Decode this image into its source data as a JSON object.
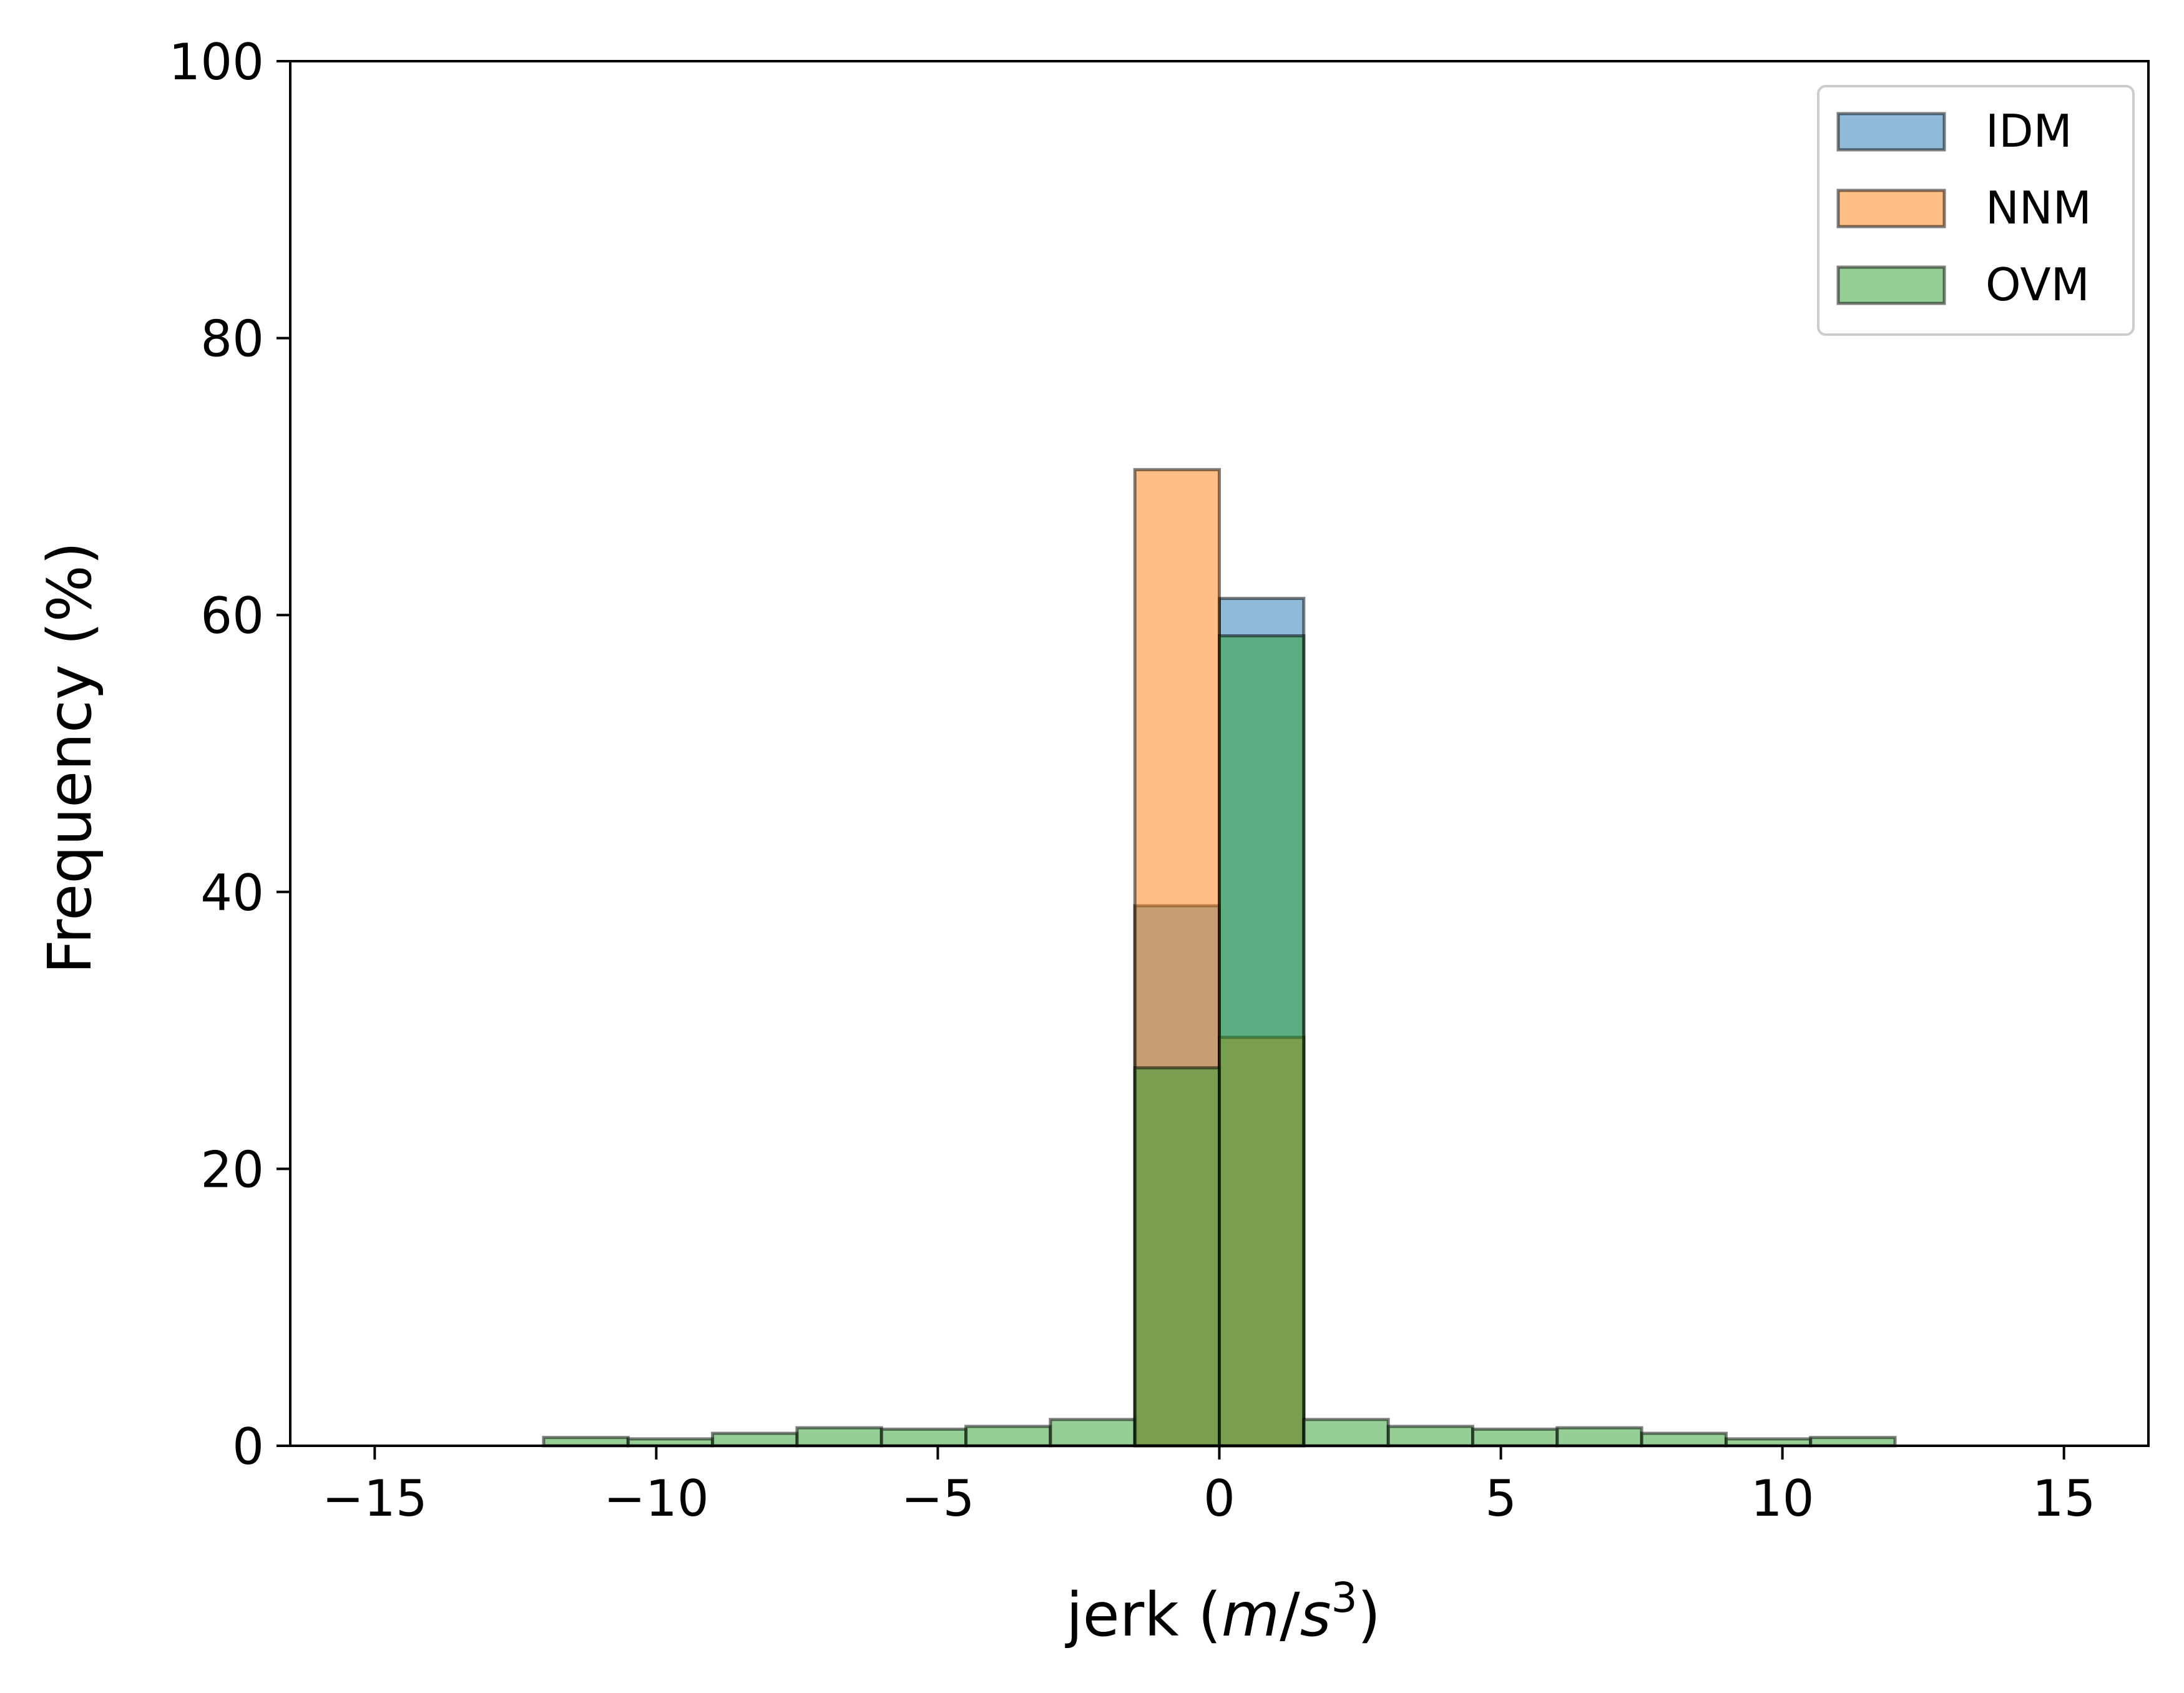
{
  "chart_data": {
    "type": "bar",
    "subtype": "overlaid-histogram",
    "xlabel_prefix": "jerk (",
    "xlabel_unit_m": "m",
    "xlabel_unit_slash": "/",
    "xlabel_unit_s": "s",
    "xlabel_unit_exp": "3",
    "xlabel_suffix": ")",
    "ylabel": "Frequency (%)",
    "xlim": [
      -16.5,
      16.5
    ],
    "ylim": [
      0,
      100
    ],
    "xticks": [
      -15,
      -10,
      -5,
      0,
      5,
      10,
      15
    ],
    "xtick_labels": [
      "−15",
      "−10",
      "−5",
      "0",
      "5",
      "10",
      "15"
    ],
    "yticks": [
      0,
      20,
      40,
      60,
      80,
      100
    ],
    "ytick_labels": [
      "0",
      "20",
      "40",
      "60",
      "80",
      "100"
    ],
    "bin_edges": [
      -15,
      -13.5,
      -12,
      -10.5,
      -9,
      -7.5,
      -6,
      -4.5,
      -3,
      -1.5,
      0,
      1.5,
      3,
      4.5,
      6,
      7.5,
      9,
      10.5,
      12,
      13.5,
      15
    ],
    "grid": false,
    "legend_position": "top-right",
    "series": [
      {
        "name": "IDM",
        "color": "#1f77b4",
        "values": [
          0,
          0,
          0,
          0,
          0,
          0,
          0,
          0,
          0,
          39.0,
          61.2,
          0,
          0,
          0,
          0,
          0,
          0,
          0,
          0,
          0
        ]
      },
      {
        "name": "NNM",
        "color": "#ff7f0e",
        "values": [
          0,
          0,
          0,
          0,
          0,
          0,
          0,
          0,
          0,
          70.5,
          29.5,
          0,
          0,
          0,
          0,
          0,
          0,
          0,
          0,
          0
        ]
      },
      {
        "name": "OVM",
        "color": "#2ca02c",
        "values": [
          0,
          0,
          0.6,
          0.5,
          0.9,
          1.3,
          1.2,
          1.4,
          1.9,
          27.3,
          58.5,
          1.9,
          1.4,
          1.2,
          1.3,
          0.9,
          0.5,
          0.6,
          0,
          0
        ]
      }
    ]
  }
}
